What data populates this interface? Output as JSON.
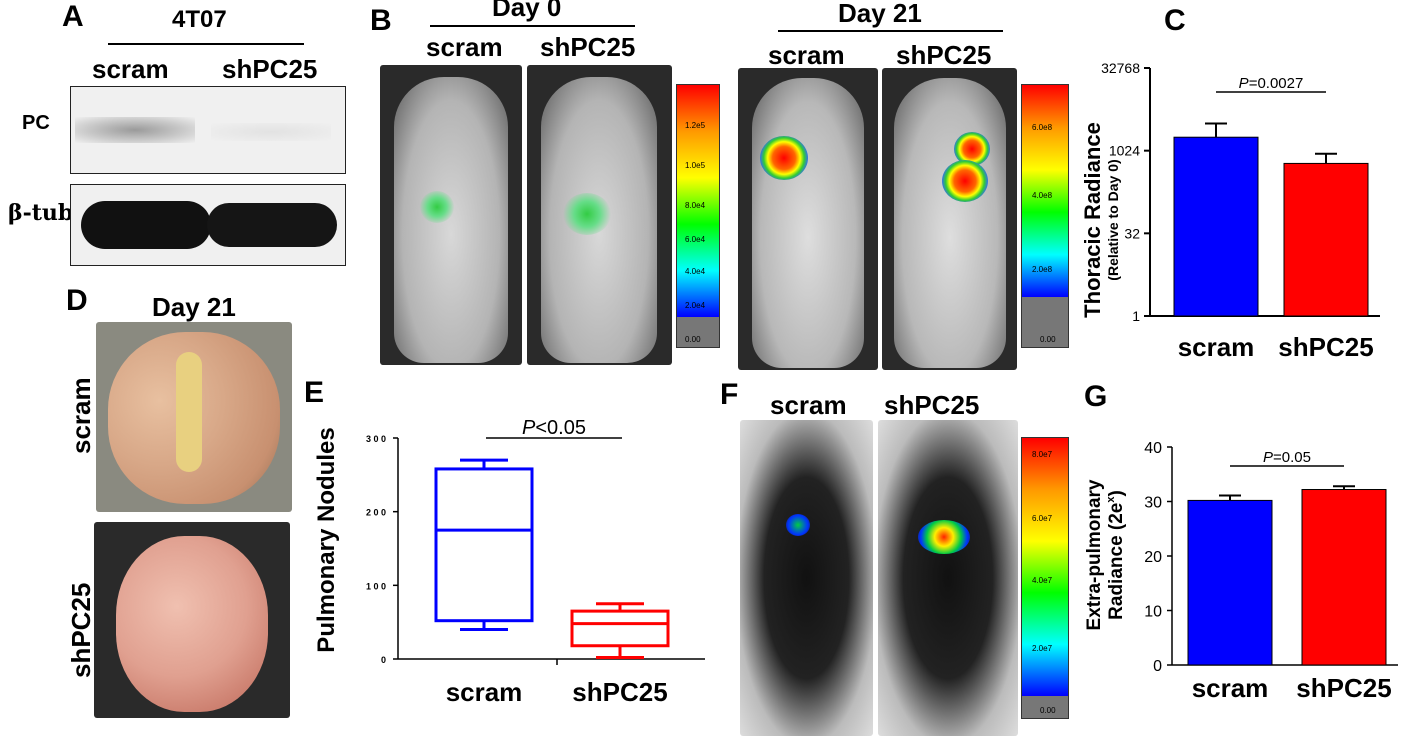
{
  "panels": {
    "A": "A",
    "B": "B",
    "C": "C",
    "D": "D",
    "E": "E",
    "F": "F",
    "G": "G"
  },
  "panel_a": {
    "cell_line": "4T07",
    "lanes": [
      "scram",
      "shPC25"
    ],
    "rows": [
      "PC",
      "β-tub"
    ]
  },
  "panel_b": {
    "day0": "Day 0",
    "day21": "Day 21",
    "lanes": [
      "scram",
      "shPC25"
    ],
    "scale_day0": [
      "1.2e5",
      "1.0e5",
      "8.0e4",
      "6.0e4",
      "4.0e4",
      "2.0e4",
      "0.00"
    ],
    "scale_day21": [
      "6.0e8",
      "4.0e8",
      "2.0e8",
      "0.00"
    ]
  },
  "panel_d": {
    "title": "Day 21",
    "rows": [
      "scram",
      "shPC25"
    ]
  },
  "panel_f": {
    "lanes": [
      "scram",
      "shPC25"
    ],
    "scale": [
      "8.0e7",
      "6.0e7",
      "4.0e7",
      "2.0e7",
      "0.00"
    ]
  },
  "colors": {
    "scram": "#0000ff",
    "shPC25": "#ff0000"
  },
  "chart_data": [
    {
      "panel": "C",
      "type": "bar",
      "categories": [
        "scram",
        "shPC25"
      ],
      "values": [
        1800,
        600
      ],
      "errors": [
        3200,
        900
      ],
      "ylabel": "Thoracic Radiance",
      "ylabel_sub": "(Relative to Day 0)",
      "yscale": "log2",
      "ylim": [
        1,
        32768
      ],
      "yticks": [
        "1",
        "32",
        "1024",
        "32768"
      ],
      "pvalue_label": "P",
      "pvalue": "=0.0027"
    },
    {
      "panel": "E",
      "type": "box",
      "categories": [
        "scram",
        "shPC25"
      ],
      "boxes": [
        {
          "min": 40,
          "q1": 52,
          "median": 175,
          "q3": 258,
          "max": 270
        },
        {
          "min": 2,
          "q1": 18,
          "median": 48,
          "q3": 65,
          "max": 75
        }
      ],
      "ylabel": "Pulmonary Nodules",
      "ylim": [
        0,
        300
      ],
      "yticks": [
        "0",
        "1 0 0",
        "2 0 0",
        "3 0 0"
      ],
      "pvalue_label": "P",
      "pvalue": "<0.05"
    },
    {
      "panel": "G",
      "type": "bar",
      "categories": [
        "scram",
        "shPC25"
      ],
      "values": [
        30.2,
        32.2
      ],
      "errors": [
        31.1,
        32.8
      ],
      "ylabel": "Extra-pulmonary",
      "ylabel2": "Radiance (2e",
      "ylabel2_sup": "x",
      "ylabel2_end": ")",
      "ylim": [
        0,
        40
      ],
      "yticks": [
        "0",
        "10",
        "20",
        "30",
        "40"
      ],
      "pvalue_label": "P",
      "pvalue": "=0.05"
    }
  ]
}
